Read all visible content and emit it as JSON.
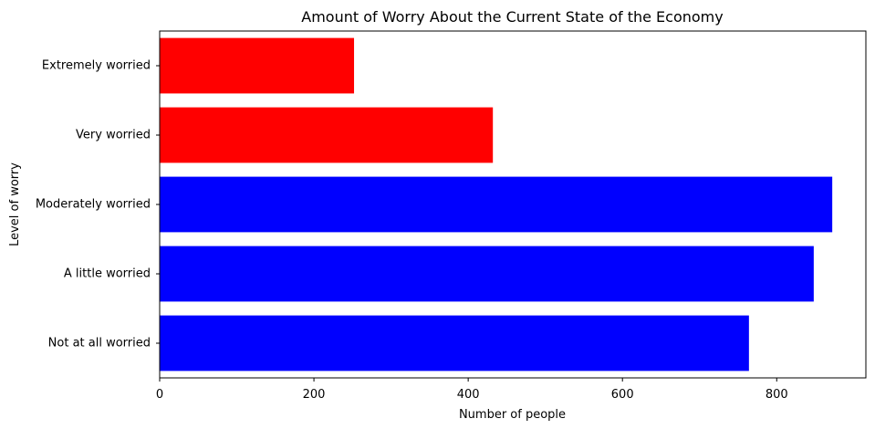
{
  "chart_data": {
    "type": "bar",
    "orientation": "horizontal",
    "title": "Amount of Worry About the Current State of the Economy",
    "xlabel": "Number of people",
    "ylabel": "Level of worry",
    "categories": [
      "Not at all worried",
      "A little worried",
      "Moderately worried",
      "Very worried",
      "Extremely worried"
    ],
    "values": [
      764,
      848,
      872,
      432,
      252
    ],
    "bar_colors": [
      "#0000ff",
      "#0000ff",
      "#0000ff",
      "#ff0000",
      "#ff0000"
    ],
    "xlim": [
      0,
      915.6
    ],
    "xticks": [
      0,
      200,
      400,
      600,
      800
    ],
    "xtick_labels": [
      "0",
      "200",
      "400",
      "600",
      "800"
    ],
    "grid": false
  }
}
